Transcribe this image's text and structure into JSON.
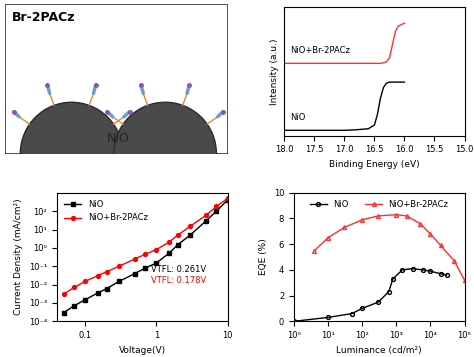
{
  "chart_data": [
    {
      "type": "diagram",
      "title": "Br-2PACz",
      "labels": [
        "NiO"
      ]
    },
    {
      "type": "line",
      "xlabel": "Binding Energy (eV)",
      "ylabel": "Intensity (a.u.)",
      "x": [
        18.0,
        17.5,
        17.0,
        16.8,
        16.6,
        16.5,
        16.45,
        16.4,
        16.35,
        16.3,
        16.25,
        16.2,
        16.15,
        16.1,
        16.0
      ],
      "xlim": [
        18.0,
        15.0
      ],
      "xticks": [
        {
          "value": 18.0,
          "label": "18.0"
        },
        {
          "value": 17.5,
          "label": "17.5"
        },
        {
          "value": 17.0,
          "label": "17.0"
        },
        {
          "value": 16.5,
          "label": "16.5"
        },
        {
          "value": 16.0,
          "label": "16.0"
        },
        {
          "value": 15.5,
          "label": "15.5"
        },
        {
          "value": 15.0,
          "label": "15.0"
        }
      ],
      "ylim": [
        0,
        2.4
      ],
      "tick_labels": "x",
      "series": [
        {
          "name": "NiO",
          "color": "#000000",
          "values": [
            0.1,
            0.1,
            0.1,
            0.11,
            0.13,
            0.2,
            0.4,
            0.7,
            0.9,
            0.98,
            1.0,
            1.0,
            1.0,
            1.0,
            1.0
          ]
        },
        {
          "name": "NiO+Br-2PACz",
          "color": "#ff3030",
          "values": [
            1.35,
            1.35,
            1.35,
            1.35,
            1.35,
            1.35,
            1.35,
            1.35,
            1.36,
            1.38,
            1.45,
            1.7,
            1.95,
            2.05,
            2.1
          ]
        }
      ]
    },
    {
      "type": "line",
      "xlabel": "Voltage(V)",
      "ylabel": "Current Density (mA/cm²)",
      "log": true,
      "x": [
        0.05,
        0.07,
        0.1,
        0.15,
        0.2,
        0.3,
        0.5,
        0.7,
        1,
        1.5,
        2,
        3,
        5,
        7,
        10
      ],
      "xlim": [
        0.04,
        10
      ],
      "xticks": [
        0.1,
        1,
        10
      ],
      "ylim": [
        0.0001,
        1000
      ],
      "yticks": [
        {
          "value": 0.0001,
          "label": "10⁻⁴"
        },
        {
          "value": 0.001,
          "label": "10⁻³"
        },
        {
          "value": 0.01,
          "label": "10⁻²"
        },
        {
          "value": 0.1,
          "label": "10⁻¹"
        },
        {
          "value": 1,
          "label": "10⁰"
        },
        {
          "value": 10,
          "label": "10¹"
        },
        {
          "value": 100,
          "label": "10²"
        }
      ],
      "legend": "upper left",
      "annotations": [
        "VTFL: 0.261V",
        "VTFL: 0.178V"
      ],
      "series": [
        {
          "name": "NiO",
          "color": "#000000",
          "marker": "square",
          "values": [
            0.0003,
            0.0007,
            0.0015,
            0.0035,
            0.006,
            0.015,
            0.04,
            0.08,
            0.15,
            0.5,
            1.5,
            5,
            30,
            100,
            400
          ]
        },
        {
          "name": "NiO+Br-2PACz",
          "color": "#ff0000",
          "marker": "circle",
          "values": [
            0.003,
            0.007,
            0.015,
            0.03,
            0.05,
            0.1,
            0.25,
            0.45,
            0.8,
            2,
            5,
            15,
            60,
            180,
            500
          ]
        }
      ]
    },
    {
      "type": "line",
      "xlabel": "Luminance (cd/m²)",
      "ylabel": "EQE (%)",
      "log": "x",
      "xlim": [
        1,
        100000
      ],
      "xticks": [
        {
          "value": 1,
          "label": "10⁰"
        },
        {
          "value": 10,
          "label": "10¹"
        },
        {
          "value": 100,
          "label": "10²"
        },
        {
          "value": 1000,
          "label": "10³"
        },
        {
          "value": 10000,
          "label": "10⁴"
        },
        {
          "value": 100000,
          "label": "10⁵"
        }
      ],
      "ylim": [
        0,
        10
      ],
      "yticks": [
        0,
        2,
        4,
        6,
        8,
        10
      ],
      "legend": "upper center",
      "series": [
        {
          "name": "NiO",
          "color": "#000000",
          "marker": "circle",
          "x": [
            1,
            10,
            50,
            100,
            300,
            600,
            800,
            1500,
            3000,
            6000,
            10000,
            20000,
            30000
          ],
          "values": [
            0,
            0.3,
            0.6,
            1.0,
            1.5,
            2.3,
            3.3,
            4.0,
            4.1,
            4.0,
            3.9,
            3.7,
            3.6
          ]
        },
        {
          "name": "NiO+Br-2PACz",
          "color": "#ff3030",
          "marker": "triangle",
          "x": [
            4,
            10,
            30,
            100,
            300,
            1000,
            2000,
            5000,
            10000,
            20000,
            50000,
            100000
          ],
          "values": [
            5.5,
            6.5,
            7.3,
            7.9,
            8.2,
            8.3,
            8.2,
            7.6,
            6.8,
            5.9,
            4.7,
            3.2
          ]
        }
      ]
    }
  ]
}
